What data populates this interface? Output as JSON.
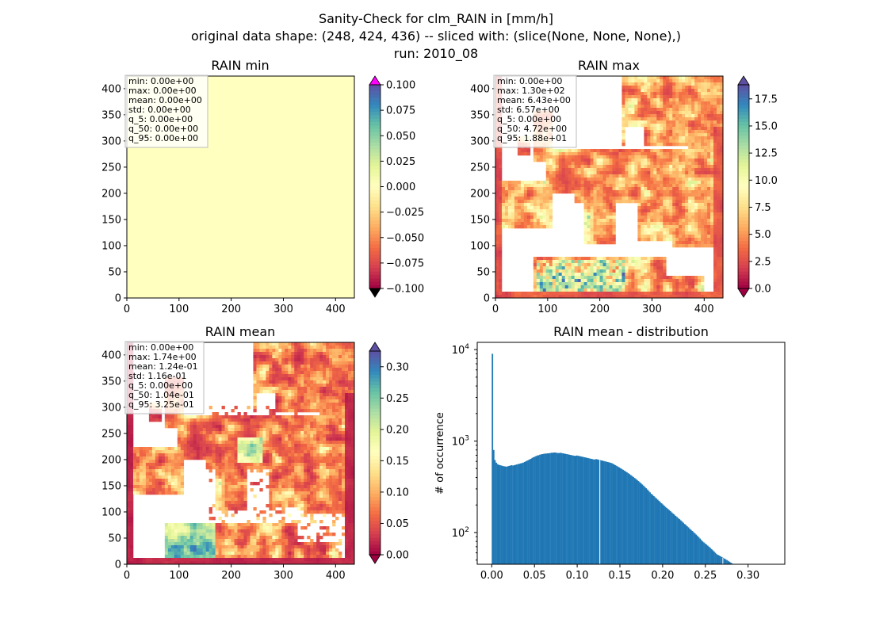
{
  "figure": {
    "suptitle": [
      "Sanity-Check for clm_RAIN in [mm/h]",
      "original data shape: (248, 424, 436) -- sliced with: (slice(None, None, None),)",
      "run: 2010_08"
    ]
  },
  "colors": {
    "spectral": [
      "#9e0142",
      "#d53e4f",
      "#f46d43",
      "#fdae61",
      "#fee08b",
      "#ffffbf",
      "#e6f598",
      "#abdda4",
      "#66c2a5",
      "#3288bd",
      "#5e4fa2"
    ],
    "over": "#ff00ff",
    "under": "#000000",
    "hist_bar": "#1f77b4"
  },
  "chart_data": [
    {
      "type": "heatmap",
      "title": "RAIN min",
      "xlim": [
        0,
        436
      ],
      "ylim": [
        0,
        424
      ],
      "xticks": [
        "0",
        "100",
        "200",
        "300",
        "400"
      ],
      "yticks": [
        "0",
        "50",
        "100",
        "150",
        "200",
        "250",
        "300",
        "350",
        "400"
      ],
      "xtick_values": [
        0,
        100,
        200,
        300,
        400
      ],
      "ytick_values": [
        0,
        50,
        100,
        150,
        200,
        250,
        300,
        350,
        400
      ],
      "colorbar": {
        "vmin": -0.1,
        "vmax": 0.1,
        "ticks": [
          "0.100",
          "0.075",
          "0.050",
          "0.025",
          "0.000",
          "−0.025",
          "−0.050",
          "−0.075",
          "−0.100"
        ],
        "tick_values": [
          0.1,
          0.075,
          0.05,
          0.025,
          0,
          -0.025,
          -0.05,
          -0.075,
          -0.1
        ],
        "extend": "both",
        "over_color": "#ff00ff"
      },
      "field": "constant",
      "stats": [
        "min: 0.00e+00",
        "max: 0.00e+00",
        "mean: 0.00e+00",
        "std: 0.00e+00",
        "q_5: 0.00e+00",
        "q_50: 0.00e+00",
        "q_95: 0.00e+00"
      ]
    },
    {
      "type": "heatmap",
      "title": "RAIN max",
      "xlim": [
        0,
        436
      ],
      "ylim": [
        0,
        424
      ],
      "xticks": [
        "0",
        "100",
        "200",
        "300",
        "400"
      ],
      "yticks": [
        "0",
        "50",
        "100",
        "150",
        "200",
        "250",
        "300",
        "350",
        "400"
      ],
      "xtick_values": [
        0,
        100,
        200,
        300,
        400
      ],
      "ytick_values": [
        0,
        50,
        100,
        150,
        200,
        250,
        300,
        350,
        400
      ],
      "colorbar": {
        "vmin": 0,
        "vmax": 18.8,
        "ticks": [
          "17.5",
          "15.0",
          "12.5",
          "10.0",
          "7.5",
          "5.0",
          "2.5",
          "0.0"
        ],
        "tick_values": [
          17.5,
          15,
          12.5,
          10,
          7.5,
          5,
          2.5,
          0
        ],
        "extend": "both"
      },
      "field": "max",
      "stats": [
        "min: 0.00e+00",
        "max: 1.30e+02",
        "mean: 6.43e+00",
        "std: 6.57e+00",
        "q_5: 0.00e+00",
        "q_50: 4.72e+00",
        "q_95: 1.88e+01"
      ]
    },
    {
      "type": "heatmap",
      "title": "RAIN mean",
      "xlim": [
        0,
        436
      ],
      "ylim": [
        0,
        424
      ],
      "xticks": [
        "0",
        "100",
        "200",
        "300",
        "400"
      ],
      "yticks": [
        "0",
        "50",
        "100",
        "150",
        "200",
        "250",
        "300",
        "350",
        "400"
      ],
      "xtick_values": [
        0,
        100,
        200,
        300,
        400
      ],
      "ytick_values": [
        0,
        50,
        100,
        150,
        200,
        250,
        300,
        350,
        400
      ],
      "colorbar": {
        "vmin": 0,
        "vmax": 0.325,
        "ticks": [
          "0.30",
          "0.25",
          "0.20",
          "0.15",
          "0.10",
          "0.05",
          "0.00"
        ],
        "tick_values": [
          0.3,
          0.25,
          0.2,
          0.15,
          0.1,
          0.05,
          0
        ],
        "extend": "both"
      },
      "field": "mean",
      "stats": [
        "min: 0.00e+00",
        "max: 1.74e+00",
        "mean: 1.24e-01",
        "std: 1.16e-01",
        "q_5: 0.00e+00",
        "q_50: 1.04e-01",
        "q_95: 3.25e-01"
      ]
    },
    {
      "type": "bar",
      "title": "RAIN mean - distribution",
      "ylabel": "# of occurrence",
      "xlabel": "",
      "yscale": "log",
      "xlim": [
        -0.017,
        0.343
      ],
      "ylim": [
        45,
        12000
      ],
      "xticks": [
        "0.00",
        "0.05",
        "0.10",
        "0.15",
        "0.20",
        "0.25",
        "0.30"
      ],
      "xtick_values": [
        0,
        0.05,
        0.1,
        0.15,
        0.2,
        0.25,
        0.3
      ],
      "ytick_exponents": [
        "2",
        "3",
        "4"
      ],
      "ytick_values": [
        100,
        1000,
        10000
      ],
      "bin_start": 0.0,
      "bin_width": 0.0015,
      "values": [
        9000,
        800,
        620,
        580,
        560,
        550,
        545,
        540,
        535,
        530,
        528,
        525,
        530,
        535,
        540,
        545,
        540,
        545,
        550,
        555,
        560,
        565,
        570,
        575,
        580,
        590,
        600,
        610,
        620,
        630,
        640,
        655,
        665,
        675,
        685,
        695,
        700,
        710,
        715,
        720,
        725,
        730,
        730,
        735,
        735,
        740,
        745,
        745,
        750,
        750,
        745,
        740,
        740,
        745,
        740,
        735,
        730,
        725,
        720,
        715,
        710,
        705,
        700,
        695,
        690,
        690,
        695,
        690,
        685,
        680,
        675,
        670,
        665,
        660,
        655,
        650,
        645,
        640,
        635,
        630,
        630,
        635,
        630,
        625,
        620,
        615,
        610,
        605,
        600,
        595,
        590,
        585,
        580,
        575,
        565,
        555,
        545,
        535,
        525,
        515,
        505,
        495,
        485,
        475,
        465,
        455,
        445,
        435,
        425,
        415,
        405,
        395,
        385,
        375,
        365,
        355,
        345,
        335,
        325,
        315,
        305,
        295,
        285,
        275,
        265,
        258,
        250,
        243,
        236,
        229,
        222,
        215,
        209,
        203,
        197,
        191,
        186,
        181,
        176,
        171,
        166,
        161,
        157,
        152,
        148,
        144,
        140,
        136,
        132,
        128,
        124,
        121,
        117,
        114,
        110,
        107,
        104,
        101,
        98,
        95,
        92,
        89,
        86,
        83,
        80,
        78,
        76,
        74,
        72,
        70,
        68,
        66,
        64,
        62,
        60,
        58,
        57,
        56,
        55,
        54,
        53,
        52,
        51,
        50,
        49,
        48,
        47,
        46,
        45,
        44
      ],
      "gaps": [
        0.1265,
        0.2705
      ]
    }
  ]
}
